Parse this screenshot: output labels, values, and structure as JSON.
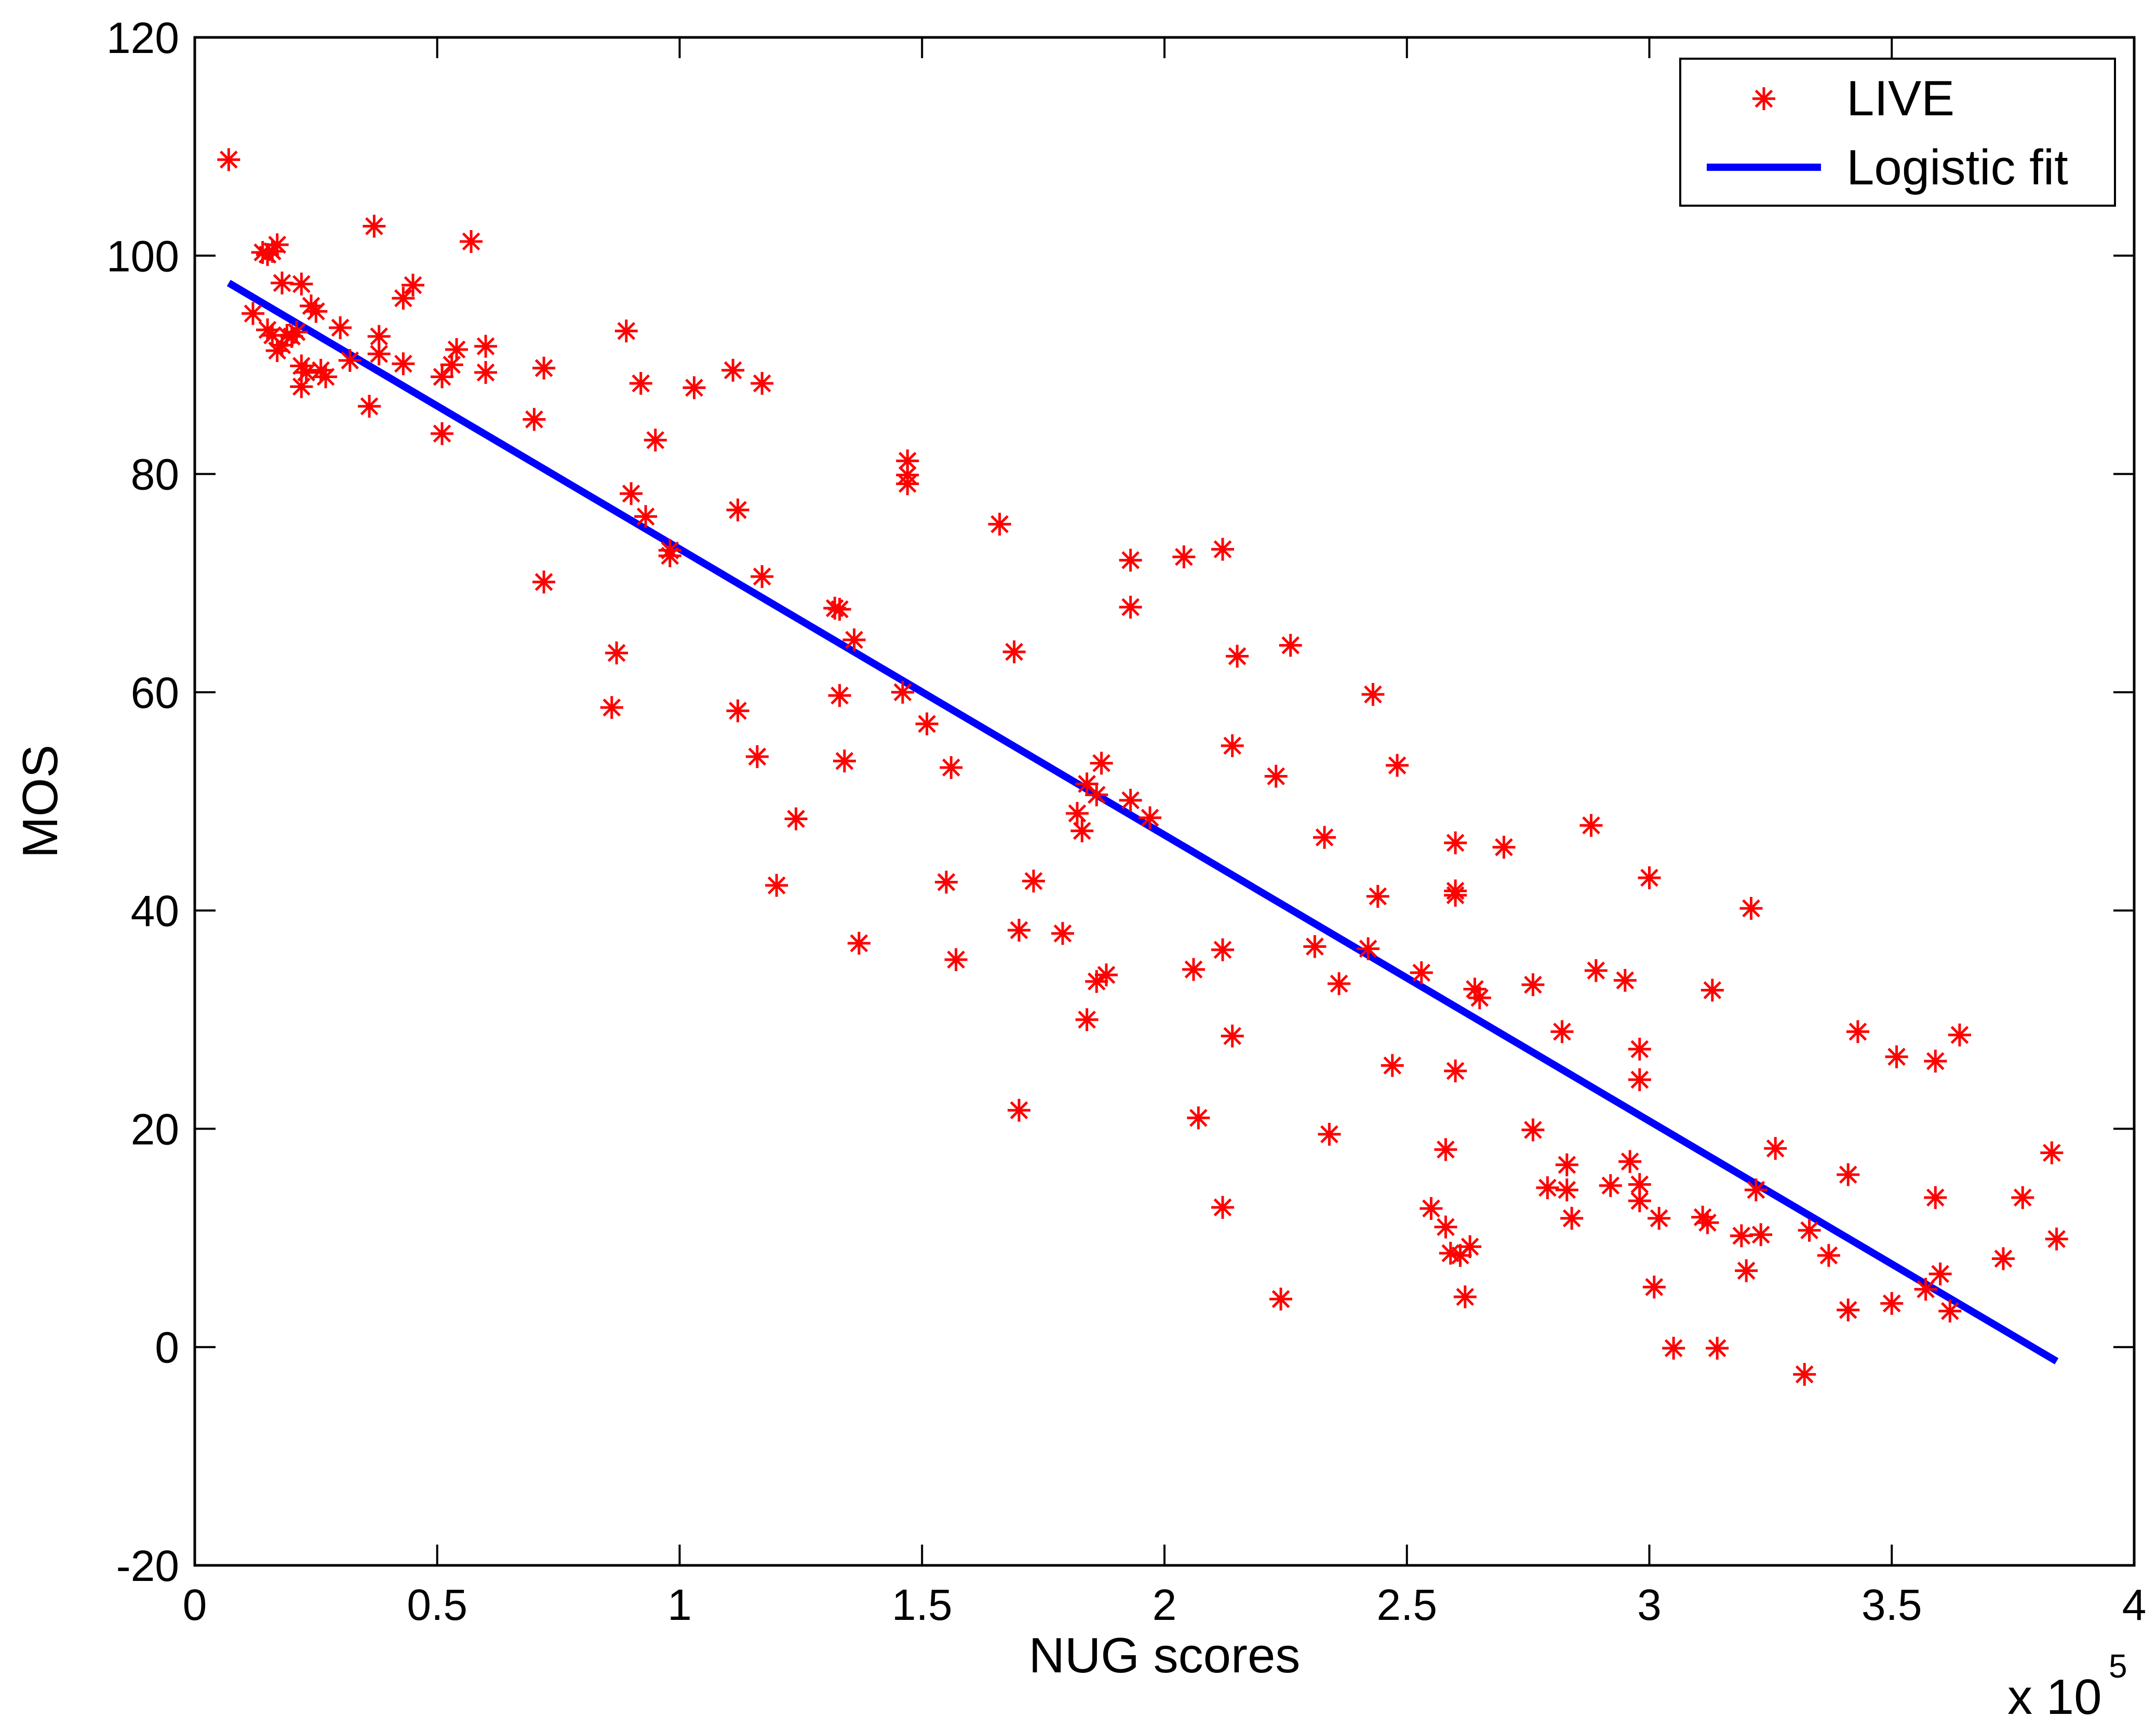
{
  "chart_data": {
    "type": "scatter",
    "title": "",
    "xlabel": "NUG scores",
    "ylabel": "MOS",
    "x_multiplier_base": "x 10",
    "x_multiplier_exp": "5",
    "xlim": [
      0,
      4
    ],
    "ylim": [
      -20,
      120
    ],
    "xticks": [
      0,
      0.5,
      1,
      1.5,
      2,
      2.5,
      3,
      3.5,
      4
    ],
    "xtick_labels": [
      "0",
      "0.5",
      "1",
      "1.5",
      "2",
      "2.5",
      "3",
      "3.5",
      "4"
    ],
    "yticks": [
      -20,
      0,
      20,
      40,
      60,
      80,
      100,
      120
    ],
    "ytick_labels": [
      "-20",
      "0",
      "20",
      "40",
      "60",
      "80",
      "100",
      "120"
    ],
    "grid": false,
    "legend_position": "top-right",
    "colors": {
      "points": "#ff0000",
      "fit": "#0000ff",
      "axes": "#000000"
    },
    "series": [
      {
        "name": "LIVE",
        "kind": "scatter",
        "marker": "asterisk",
        "points": [
          [
            0.07,
            108.8
          ],
          [
            0.12,
            94.7
          ],
          [
            0.14,
            100.3
          ],
          [
            0.15,
            100.1
          ],
          [
            0.16,
            100.4
          ],
          [
            0.17,
            101.0
          ],
          [
            0.15,
            93.2
          ],
          [
            0.16,
            92.7
          ],
          [
            0.17,
            91.3
          ],
          [
            0.18,
            91.8
          ],
          [
            0.19,
            92.7
          ],
          [
            0.2,
            92.6
          ],
          [
            0.18,
            97.5
          ],
          [
            0.22,
            97.4
          ],
          [
            0.24,
            95.4
          ],
          [
            0.25,
            94.9
          ],
          [
            0.21,
            93.0
          ],
          [
            0.22,
            89.9
          ],
          [
            0.22,
            88.0
          ],
          [
            0.23,
            89.3
          ],
          [
            0.26,
            89.5
          ],
          [
            0.27,
            88.9
          ],
          [
            0.3,
            93.4
          ],
          [
            0.32,
            90.4
          ],
          [
            0.36,
            86.2
          ],
          [
            0.37,
            102.7
          ],
          [
            0.38,
            92.6
          ],
          [
            0.38,
            91.0
          ],
          [
            0.43,
            96.1
          ],
          [
            0.45,
            97.3
          ],
          [
            0.43,
            90.1
          ],
          [
            0.51,
            88.9
          ],
          [
            0.53,
            90.0
          ],
          [
            0.54,
            91.4
          ],
          [
            0.57,
            101.3
          ],
          [
            0.6,
            91.7
          ],
          [
            0.6,
            89.3
          ],
          [
            0.51,
            83.7
          ],
          [
            0.7,
            85.0
          ],
          [
            0.72,
            89.7
          ],
          [
            0.72,
            70.1
          ],
          [
            0.86,
            58.6
          ],
          [
            0.87,
            63.6
          ],
          [
            0.89,
            93.1
          ],
          [
            0.9,
            78.2
          ],
          [
            0.92,
            88.3
          ],
          [
            0.93,
            76.1
          ],
          [
            0.95,
            83.1
          ],
          [
            0.98,
            72.5
          ],
          [
            0.98,
            73.0
          ],
          [
            1.03,
            87.9
          ],
          [
            1.11,
            89.5
          ],
          [
            1.12,
            76.7
          ],
          [
            1.12,
            58.3
          ],
          [
            1.16,
            54.1
          ],
          [
            1.17,
            88.3
          ],
          [
            1.17,
            70.6
          ],
          [
            1.2,
            42.3
          ],
          [
            1.24,
            48.4
          ],
          [
            1.32,
            67.7
          ],
          [
            1.33,
            67.6
          ],
          [
            1.33,
            59.7
          ],
          [
            1.34,
            53.7
          ],
          [
            1.36,
            64.8
          ],
          [
            1.37,
            37.0
          ],
          [
            1.46,
            60.0
          ],
          [
            1.47,
            81.2
          ],
          [
            1.47,
            79.9
          ],
          [
            1.47,
            79.1
          ],
          [
            1.51,
            57.1
          ],
          [
            1.55,
            42.6
          ],
          [
            1.56,
            53.1
          ],
          [
            1.57,
            35.5
          ],
          [
            1.66,
            75.4
          ],
          [
            1.69,
            63.7
          ],
          [
            1.7,
            38.2
          ],
          [
            1.7,
            21.7
          ],
          [
            1.73,
            42.7
          ],
          [
            1.79,
            37.9
          ],
          [
            1.82,
            48.9
          ],
          [
            1.83,
            47.3
          ],
          [
            1.84,
            51.6
          ],
          [
            1.84,
            30.0
          ],
          [
            1.86,
            50.6
          ],
          [
            1.87,
            53.5
          ],
          [
            1.86,
            33.5
          ],
          [
            1.88,
            34.1
          ],
          [
            1.93,
            72.1
          ],
          [
            1.93,
            67.8
          ],
          [
            1.93,
            50.1
          ],
          [
            1.97,
            48.5
          ],
          [
            2.04,
            72.4
          ],
          [
            2.06,
            34.6
          ],
          [
            2.07,
            21.0
          ],
          [
            2.12,
            73.1
          ],
          [
            2.12,
            36.4
          ],
          [
            2.12,
            12.8
          ],
          [
            2.14,
            28.5
          ],
          [
            2.14,
            55.1
          ],
          [
            2.15,
            63.3
          ],
          [
            2.23,
            52.3
          ],
          [
            2.24,
            4.4
          ],
          [
            2.26,
            64.3
          ],
          [
            2.31,
            36.7
          ],
          [
            2.33,
            46.7
          ],
          [
            2.34,
            19.5
          ],
          [
            2.36,
            33.3
          ],
          [
            2.42,
            36.5
          ],
          [
            2.43,
            59.8
          ],
          [
            2.44,
            41.3
          ],
          [
            2.47,
            25.8
          ],
          [
            2.48,
            53.3
          ],
          [
            2.53,
            34.3
          ],
          [
            2.55,
            12.7
          ],
          [
            2.58,
            18.1
          ],
          [
            2.58,
            11.0
          ],
          [
            2.59,
            8.6
          ],
          [
            2.6,
            46.2
          ],
          [
            2.6,
            41.8
          ],
          [
            2.6,
            41.4
          ],
          [
            2.6,
            25.3
          ],
          [
            2.61,
            8.4
          ],
          [
            2.62,
            4.6
          ],
          [
            2.63,
            9.2
          ],
          [
            2.64,
            32.8
          ],
          [
            2.65,
            32.0
          ],
          [
            2.7,
            45.8
          ],
          [
            2.76,
            33.2
          ],
          [
            2.76,
            19.9
          ],
          [
            2.79,
            14.6
          ],
          [
            2.82,
            28.9
          ],
          [
            2.83,
            16.7
          ],
          [
            2.83,
            14.4
          ],
          [
            2.84,
            11.8
          ],
          [
            2.88,
            47.8
          ],
          [
            2.89,
            34.5
          ],
          [
            2.92,
            14.8
          ],
          [
            2.95,
            33.6
          ],
          [
            2.96,
            17.0
          ],
          [
            2.98,
            27.3
          ],
          [
            2.98,
            24.5
          ],
          [
            2.98,
            14.9
          ],
          [
            2.98,
            13.4
          ],
          [
            3.0,
            43.0
          ],
          [
            3.01,
            5.5
          ],
          [
            3.02,
            11.8
          ],
          [
            3.05,
            -0.1
          ],
          [
            3.11,
            11.9
          ],
          [
            3.12,
            11.4
          ],
          [
            3.13,
            32.7
          ],
          [
            3.14,
            -0.1
          ],
          [
            3.19,
            10.2
          ],
          [
            3.2,
            7.0
          ],
          [
            3.21,
            40.2
          ],
          [
            3.22,
            14.4
          ],
          [
            3.23,
            10.3
          ],
          [
            3.26,
            18.2
          ],
          [
            3.32,
            -2.5
          ],
          [
            3.33,
            10.7
          ],
          [
            3.37,
            8.4
          ],
          [
            3.41,
            15.8
          ],
          [
            3.41,
            3.4
          ],
          [
            3.43,
            28.9
          ],
          [
            3.5,
            4.0
          ],
          [
            3.51,
            26.6
          ],
          [
            3.57,
            5.3
          ],
          [
            3.59,
            26.2
          ],
          [
            3.59,
            13.7
          ],
          [
            3.6,
            6.7
          ],
          [
            3.62,
            3.3
          ],
          [
            3.64,
            28.6
          ],
          [
            3.73,
            8.1
          ],
          [
            3.77,
            13.7
          ],
          [
            3.83,
            17.8
          ],
          [
            3.84,
            9.9
          ]
        ]
      },
      {
        "name": "Logistic fit",
        "kind": "line",
        "x": [
          0.07,
          3.84
        ],
        "y": [
          97.5,
          -1.3
        ]
      }
    ]
  }
}
